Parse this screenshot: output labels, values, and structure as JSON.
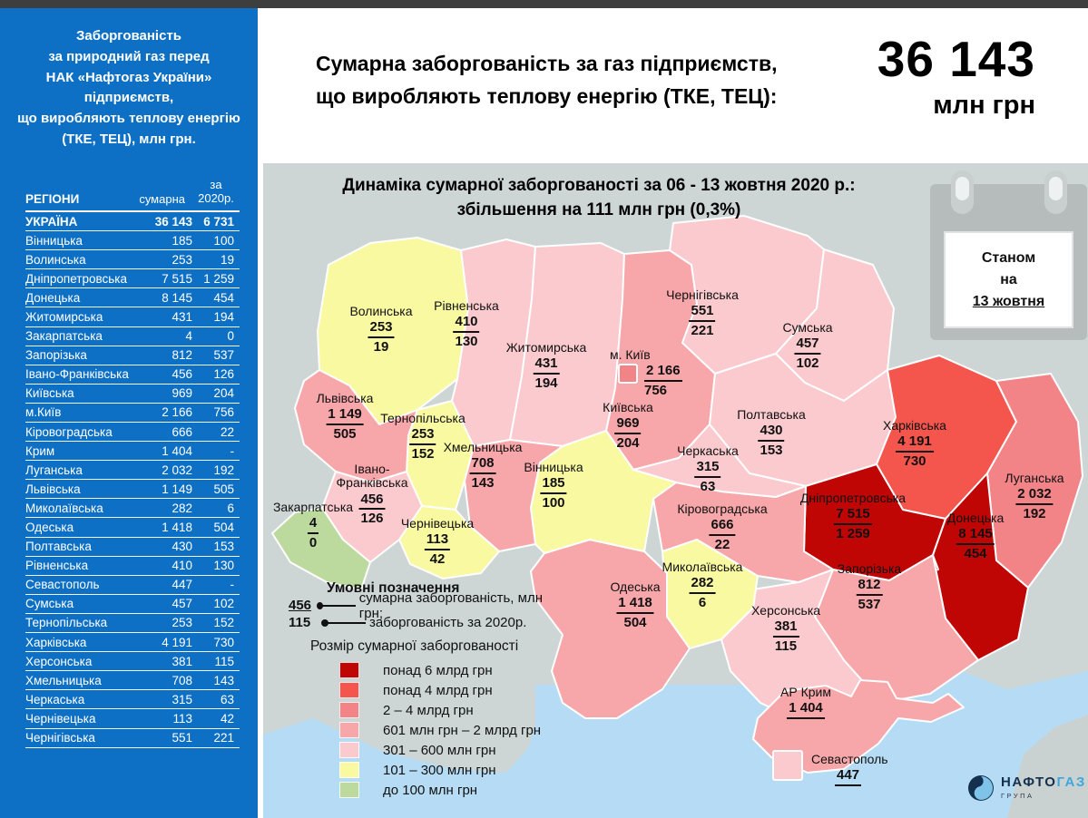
{
  "header": {
    "title_line1": "Сумарна заборгованість за газ підприємств,",
    "title_line2": "що виробляють теплову енергію (ТКЕ, ТЕЦ):",
    "total_value": "36 143",
    "total_unit": "млн грн"
  },
  "sidebar": {
    "title_lines": [
      "Заборгованість",
      "за природний газ перед",
      "НАК «Нафтогаз України» підприємств,",
      "що виробляють теплову енергію",
      "(ТКЕ, ТЕЦ), млн грн."
    ],
    "columns": {
      "region": "РЕГІОНИ",
      "total": "сумарна",
      "y2020": "за 2020р."
    },
    "rows": [
      {
        "region": "УКРАЇНА",
        "total": "36 143",
        "y2020": "6 731",
        "bold": true
      },
      {
        "region": "Вінницька",
        "total": "185",
        "y2020": "100"
      },
      {
        "region": "Волинська",
        "total": "253",
        "y2020": "19"
      },
      {
        "region": "Дніпропетровська",
        "total": "7 515",
        "y2020": "1 259"
      },
      {
        "region": "Донецька",
        "total": "8 145",
        "y2020": "454"
      },
      {
        "region": "Житомирська",
        "total": "431",
        "y2020": "194"
      },
      {
        "region": "Закарпатська",
        "total": "4",
        "y2020": "0"
      },
      {
        "region": "Запорізька",
        "total": "812",
        "y2020": "537"
      },
      {
        "region": "Івано-Франківська",
        "total": "456",
        "y2020": "126"
      },
      {
        "region": "Київська",
        "total": "969",
        "y2020": "204"
      },
      {
        "region": "м.Київ",
        "total": "2 166",
        "y2020": "756"
      },
      {
        "region": "Кіровоградська",
        "total": "666",
        "y2020": "22"
      },
      {
        "region": "Крим",
        "total": "1 404",
        "y2020": "-"
      },
      {
        "region": "Луганська",
        "total": "2 032",
        "y2020": "192"
      },
      {
        "region": "Львівська",
        "total": "1 149",
        "y2020": "505"
      },
      {
        "region": "Миколаївська",
        "total": "282",
        "y2020": "6"
      },
      {
        "region": "Одеська",
        "total": "1 418",
        "y2020": "504"
      },
      {
        "region": "Полтавська",
        "total": "430",
        "y2020": "153"
      },
      {
        "region": "Рівненська",
        "total": "410",
        "y2020": "130"
      },
      {
        "region": "Севастополь",
        "total": "447",
        "y2020": "-"
      },
      {
        "region": "Сумська",
        "total": "457",
        "y2020": "102"
      },
      {
        "region": "Тернопільська",
        "total": "253",
        "y2020": "152"
      },
      {
        "region": "Харківська",
        "total": "4 191",
        "y2020": "730"
      },
      {
        "region": "Херсонська",
        "total": "381",
        "y2020": "115"
      },
      {
        "region": "Хмельницька",
        "total": "708",
        "y2020": "143"
      },
      {
        "region": "Черкаська",
        "total": "315",
        "y2020": "63"
      },
      {
        "region": "Чернівецька",
        "total": "113",
        "y2020": "42"
      },
      {
        "region": "Чернігівська",
        "total": "551",
        "y2020": "221"
      }
    ]
  },
  "map": {
    "title_line1": "Динаміка сумарної заборгованості за 06 - 13 жовтня 2020 р.:",
    "title_line2": "збільшення на 111 млн грн (0,3%)",
    "calendar": {
      "line1": "Станом",
      "line2": "на",
      "line3": "13 жовтня"
    },
    "legend": {
      "title": "Умовні позначення",
      "sample_total": "456",
      "sample_total_label": "сумарна заборгованість, млн грн;",
      "sample_y2020": "115",
      "sample_y2020_label": "заборгованість за 2020р.",
      "size_title": "Розмір сумарної заборгованості",
      "bins": [
        {
          "category": "over6",
          "label": "понад 6 млрд грн"
        },
        {
          "category": "over4",
          "label": "понад 4 млрд грн"
        },
        {
          "category": "b2_4",
          "label": "2 – 4 млрд грн"
        },
        {
          "category": "b06_2",
          "label": "601 млн грн – 2 млрд грн"
        },
        {
          "category": "b03_06",
          "label": "301 – 600 млн грн"
        },
        {
          "category": "b01_03",
          "label": "101 – 300 млн грн"
        },
        {
          "category": "u01",
          "label": "до 100 млн грн"
        }
      ]
    },
    "colors": {
      "over6": "#c00505",
      "over4": "#f4554d",
      "b2_4": "#f28387",
      "b06_2": "#f7a6aa",
      "b03_06": "#facace",
      "b01_03": "#f9f9a2",
      "u01": "#bcd99e",
      "sea": "#b5dcf4",
      "land_bg": "#cdd6d5",
      "sidebar_blue": "#0e70c4"
    },
    "regions": [
      {
        "id": "volyn",
        "name": "Волинська",
        "total": "253",
        "y2020": "19",
        "category": "b01_03"
      },
      {
        "id": "rivne",
        "name": "Рівненська",
        "total": "410",
        "y2020": "130",
        "category": "b03_06"
      },
      {
        "id": "zhytomyr",
        "name": "Житомирська",
        "total": "431",
        "y2020": "194",
        "category": "b03_06"
      },
      {
        "id": "chernihiv",
        "name": "Чернігівська",
        "total": "551",
        "y2020": "221",
        "category": "b03_06"
      },
      {
        "id": "sumy",
        "name": "Сумська",
        "total": "457",
        "y2020": "102",
        "category": "b03_06"
      },
      {
        "id": "kyiv-obl",
        "name": "Київська",
        "total": "969",
        "y2020": "204",
        "category": "b06_2"
      },
      {
        "id": "kyiv-city",
        "name": "м. Київ",
        "total": "2 166",
        "y2020": "756",
        "category": "b2_4"
      },
      {
        "id": "poltava",
        "name": "Полтавська",
        "total": "430",
        "y2020": "153",
        "category": "b03_06"
      },
      {
        "id": "kharkiv",
        "name": "Харківська",
        "total": "4 191",
        "y2020": "730",
        "category": "over4"
      },
      {
        "id": "luhansk",
        "name": "Луганська",
        "total": "2 032",
        "y2020": "192",
        "category": "b2_4"
      },
      {
        "id": "lviv",
        "name": "Львівська",
        "total": "1 149",
        "y2020": "505",
        "category": "b06_2"
      },
      {
        "id": "ternopil",
        "name": "Тернопільська",
        "total": "253",
        "y2020": "152",
        "category": "b01_03"
      },
      {
        "id": "khmelnytskyi",
        "name": "Хмельницька",
        "total": "708",
        "y2020": "143",
        "category": "b06_2"
      },
      {
        "id": "vinnytsia",
        "name": "Вінницька",
        "total": "185",
        "y2020": "100",
        "category": "b01_03"
      },
      {
        "id": "cherkasy",
        "name": "Черкаська",
        "total": "315",
        "y2020": "63",
        "category": "b03_06"
      },
      {
        "id": "kirovohrad",
        "name": "Кіровоградська",
        "total": "666",
        "y2020": "22",
        "category": "b06_2"
      },
      {
        "id": "dnipro",
        "name": "Дніпропетровська",
        "total": "7 515",
        "y2020": "1 259",
        "category": "over6"
      },
      {
        "id": "donetsk",
        "name": "Донецька",
        "total": "8 145",
        "y2020": "454",
        "category": "over6"
      },
      {
        "id": "zaporizhzhia",
        "name": "Запорізька",
        "total": "812",
        "y2020": "537",
        "category": "b06_2"
      },
      {
        "id": "ivano-frankivsk",
        "name": "Івано-",
        "name2": "Франківська",
        "total": "456",
        "y2020": "126",
        "category": "b03_06"
      },
      {
        "id": "zakarpattia",
        "name": "Закарпатська",
        "total": "4",
        "y2020": "0",
        "category": "u01"
      },
      {
        "id": "chernivtsi",
        "name": "Чернівецька",
        "total": "113",
        "y2020": "42",
        "category": "b01_03"
      },
      {
        "id": "odesa",
        "name": "Одеська",
        "total": "1 418",
        "y2020": "504",
        "category": "b06_2"
      },
      {
        "id": "mykolaiv",
        "name": "Миколаївська",
        "total": "282",
        "y2020": "6",
        "category": "b01_03"
      },
      {
        "id": "kherson",
        "name": "Херсонська",
        "total": "381",
        "y2020": "115",
        "category": "b03_06"
      },
      {
        "id": "crimea",
        "name": "АР Крим",
        "total": "1 404",
        "category": "b06_2"
      },
      {
        "id": "sevastopol",
        "name": "Севастополь",
        "total": "447",
        "category": "b03_06"
      }
    ]
  },
  "logo": {
    "brand_dark": "НАФТО",
    "brand_light": "ГАЗ",
    "brand_sub": "ГРУПА"
  },
  "chart_data": {
    "type": "heatmap",
    "subtype": "choropleth-map",
    "title": "Динаміка сумарної заборгованості за 06 - 13 жовтня 2020 р.: збільшення на 111 млн грн (0,3%)",
    "unit": "млн грн",
    "as_of": "13 жовтня",
    "weekly_change": {
      "amount_mln": 111,
      "percent": 0.3,
      "period": "06 - 13 жовтня 2020"
    },
    "total": {
      "region": "УКРАЇНА",
      "total_debt": 36143,
      "debt_2020": 6731
    },
    "regions": [
      {
        "region": "Вінницька",
        "total_debt": 185,
        "debt_2020": 100
      },
      {
        "region": "Волинська",
        "total_debt": 253,
        "debt_2020": 19
      },
      {
        "region": "Дніпропетровська",
        "total_debt": 7515,
        "debt_2020": 1259
      },
      {
        "region": "Донецька",
        "total_debt": 8145,
        "debt_2020": 454
      },
      {
        "region": "Житомирська",
        "total_debt": 431,
        "debt_2020": 194
      },
      {
        "region": "Закарпатська",
        "total_debt": 4,
        "debt_2020": 0
      },
      {
        "region": "Запорізька",
        "total_debt": 812,
        "debt_2020": 537
      },
      {
        "region": "Івано-Франківська",
        "total_debt": 456,
        "debt_2020": 126
      },
      {
        "region": "Київська",
        "total_debt": 969,
        "debt_2020": 204
      },
      {
        "region": "м.Київ",
        "total_debt": 2166,
        "debt_2020": 756
      },
      {
        "region": "Кіровоградська",
        "total_debt": 666,
        "debt_2020": 22
      },
      {
        "region": "Крим",
        "total_debt": 1404,
        "debt_2020": null
      },
      {
        "region": "Луганська",
        "total_debt": 2032,
        "debt_2020": 192
      },
      {
        "region": "Львівська",
        "total_debt": 1149,
        "debt_2020": 505
      },
      {
        "region": "Миколаївська",
        "total_debt": 282,
        "debt_2020": 6
      },
      {
        "region": "Одеська",
        "total_debt": 1418,
        "debt_2020": 504
      },
      {
        "region": "Полтавська",
        "total_debt": 430,
        "debt_2020": 153
      },
      {
        "region": "Рівненська",
        "total_debt": 410,
        "debt_2020": 130
      },
      {
        "region": "Севастополь",
        "total_debt": 447,
        "debt_2020": null
      },
      {
        "region": "Сумська",
        "total_debt": 457,
        "debt_2020": 102
      },
      {
        "region": "Тернопільська",
        "total_debt": 253,
        "debt_2020": 152
      },
      {
        "region": "Харківська",
        "total_debt": 4191,
        "debt_2020": 730
      },
      {
        "region": "Херсонська",
        "total_debt": 381,
        "debt_2020": 115
      },
      {
        "region": "Хмельницька",
        "total_debt": 708,
        "debt_2020": 143
      },
      {
        "region": "Черкаська",
        "total_debt": 315,
        "debt_2020": 63
      },
      {
        "region": "Чернівецька",
        "total_debt": 113,
        "debt_2020": 42
      },
      {
        "region": "Чернігівська",
        "total_debt": 551,
        "debt_2020": 221
      }
    ],
    "legend_bins": [
      "понад 6 млрд грн",
      "понад 4 млрд грн",
      "2 – 4 млрд грн",
      "601 млн грн – 2 млрд грн",
      "301 – 600 млн грн",
      "101 – 300 млн грн",
      "до 100 млн грн"
    ],
    "legend_position": "bottom-left"
  }
}
